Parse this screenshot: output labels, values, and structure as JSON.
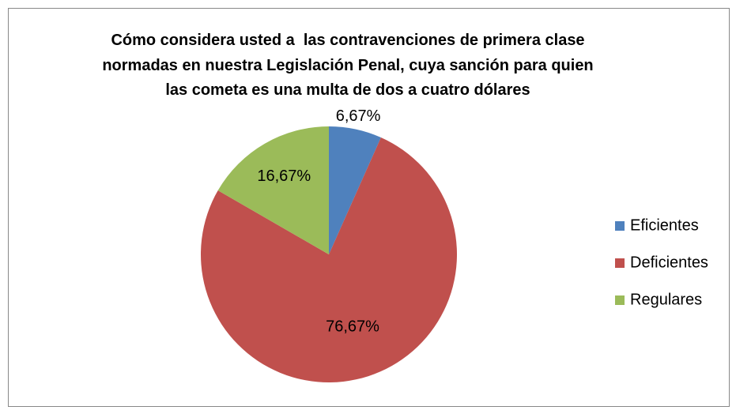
{
  "chart_data": {
    "type": "pie",
    "title": "Cómo considera usted a  las contravenciones de primera clase\nnormadas en nuestra Legislación Penal, cuya sanción para quien\nlas cometa es una multa de dos a cuatro dólares",
    "categories": [
      "Eficientes",
      "Deficientes",
      "Regulares"
    ],
    "values": [
      6.67,
      76.67,
      16.67
    ],
    "value_labels": [
      "6,67%",
      "76,67%",
      "16,67%"
    ],
    "colors": [
      "#4f81bd",
      "#c0504d",
      "#9bbb59"
    ],
    "legend": "right"
  }
}
